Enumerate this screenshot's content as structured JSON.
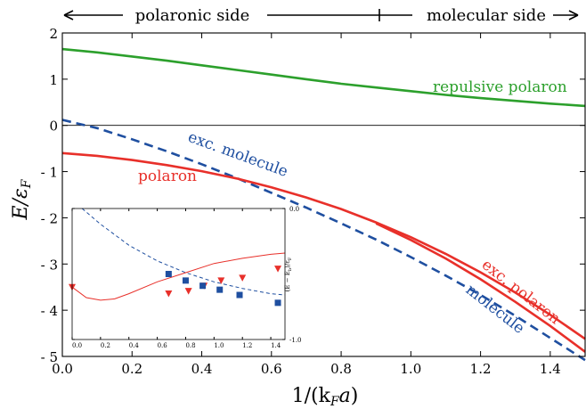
{
  "chart_data": [
    {
      "type": "line",
      "top_banner": {
        "left": "polaronic side",
        "right": "molecular side",
        "divider_x": 0.9
      },
      "xlabel": "1/(k_F a)",
      "ylabel": "E/ε_F",
      "xlim": [
        0.0,
        1.5
      ],
      "ylim": [
        -5,
        2
      ],
      "x_ticks": [
        "0.0",
        "0.2",
        "0.4",
        "0.6",
        "0.8",
        "1.0",
        "1.2",
        "1.4"
      ],
      "y_ticks": [
        "2",
        "1",
        "0",
        "- 1",
        "- 2",
        "- 3",
        "- 4",
        "- 5"
      ],
      "grid": false,
      "zero_line": true,
      "series": [
        {
          "name": "repulsive polaron",
          "color": "#2ca02c",
          "style": "solid",
          "x": [
            0.0,
            0.1,
            0.2,
            0.3,
            0.4,
            0.5,
            0.6,
            0.7,
            0.8,
            0.9,
            1.0,
            1.1,
            1.2,
            1.3,
            1.4,
            1.5
          ],
          "y": [
            1.65,
            1.58,
            1.49,
            1.4,
            1.3,
            1.2,
            1.1,
            1.0,
            0.9,
            0.82,
            0.74,
            0.66,
            0.59,
            0.53,
            0.47,
            0.42
          ]
        },
        {
          "name": "exc. molecule",
          "color": "#1f4fa0",
          "style": "dashed",
          "x": [
            0.0,
            0.1,
            0.2,
            0.3,
            0.4,
            0.5,
            0.6,
            0.7,
            0.8,
            0.9,
            1.0,
            1.1,
            1.2,
            1.3,
            1.4,
            1.5
          ],
          "y": [
            0.12,
            -0.06,
            -0.3,
            -0.56,
            -0.84,
            -1.14,
            -1.46,
            -1.78,
            -2.12,
            -2.47,
            -2.85,
            -3.25,
            -3.67,
            -4.12,
            -4.6,
            -5.08
          ]
        },
        {
          "name": "polaron",
          "color": "#e8302a",
          "style": "solid",
          "x": [
            0.0,
            0.1,
            0.2,
            0.3,
            0.4,
            0.5,
            0.6,
            0.7,
            0.8,
            0.9,
            1.0,
            1.1,
            1.2,
            1.3,
            1.4,
            1.5
          ],
          "y": [
            -0.6,
            -0.66,
            -0.75,
            -0.86,
            -0.99,
            -1.15,
            -1.34,
            -1.56,
            -1.81,
            -2.1,
            -2.42,
            -2.78,
            -3.18,
            -3.62,
            -4.1,
            -4.62
          ]
        },
        {
          "name": "",
          "color": "#e8302a",
          "style": "solid",
          "x": [
            0.9,
            1.0,
            1.1,
            1.2,
            1.3,
            1.4,
            1.5
          ],
          "y": [
            -2.12,
            -2.48,
            -2.88,
            -3.33,
            -3.82,
            -4.34,
            -4.9
          ]
        }
      ],
      "annotations": [
        "repulsive polaron",
        "exc. molecule",
        "polaron",
        "exc. polaron",
        "molecule"
      ]
    },
    {
      "type": "line",
      "inset": true,
      "ylabel": "(E − E_b)/ε_F",
      "xlim": [
        0.0,
        1.5
      ],
      "ylim": [
        -1.0,
        0.0
      ],
      "x_ticks": [
        "0.0",
        "0.2",
        "0.4",
        "0.6",
        "0.8",
        "1.0",
        "1.2",
        "1.4"
      ],
      "y_ticks": [
        "0.0",
        "-1.0"
      ],
      "series": [
        {
          "name": "",
          "color": "#1f4fa0",
          "style": "dashed",
          "x": [
            0.07,
            0.2,
            0.4,
            0.6,
            0.8,
            1.0,
            1.2,
            1.4,
            1.5
          ],
          "y": [
            0.0,
            -0.12,
            -0.28,
            -0.4,
            -0.49,
            -0.56,
            -0.61,
            -0.65,
            -0.66
          ]
        },
        {
          "name": "",
          "color": "#e8302a",
          "style": "solid",
          "x": [
            0.0,
            0.1,
            0.2,
            0.3,
            0.4,
            0.6,
            0.8,
            1.0,
            1.2,
            1.4,
            1.5
          ],
          "y": [
            -0.6,
            -0.68,
            -0.7,
            -0.69,
            -0.65,
            -0.56,
            -0.49,
            -0.42,
            -0.38,
            -0.35,
            -0.34
          ]
        }
      ],
      "markers": [
        {
          "shape": "triangle",
          "color": "#e8302a",
          "x": [
            0.0,
            0.68,
            0.82,
            0.93,
            1.05,
            1.2,
            1.45
          ],
          "y": [
            -0.6,
            -0.65,
            -0.63,
            -0.59,
            -0.55,
            -0.53,
            -0.46
          ]
        },
        {
          "shape": "square",
          "color": "#1f4fa0",
          "x": [
            0.68,
            0.8,
            0.92,
            1.04,
            1.18,
            1.45
          ],
          "y": [
            -0.5,
            -0.55,
            -0.59,
            -0.62,
            -0.66,
            -0.72
          ]
        }
      ]
    }
  ]
}
